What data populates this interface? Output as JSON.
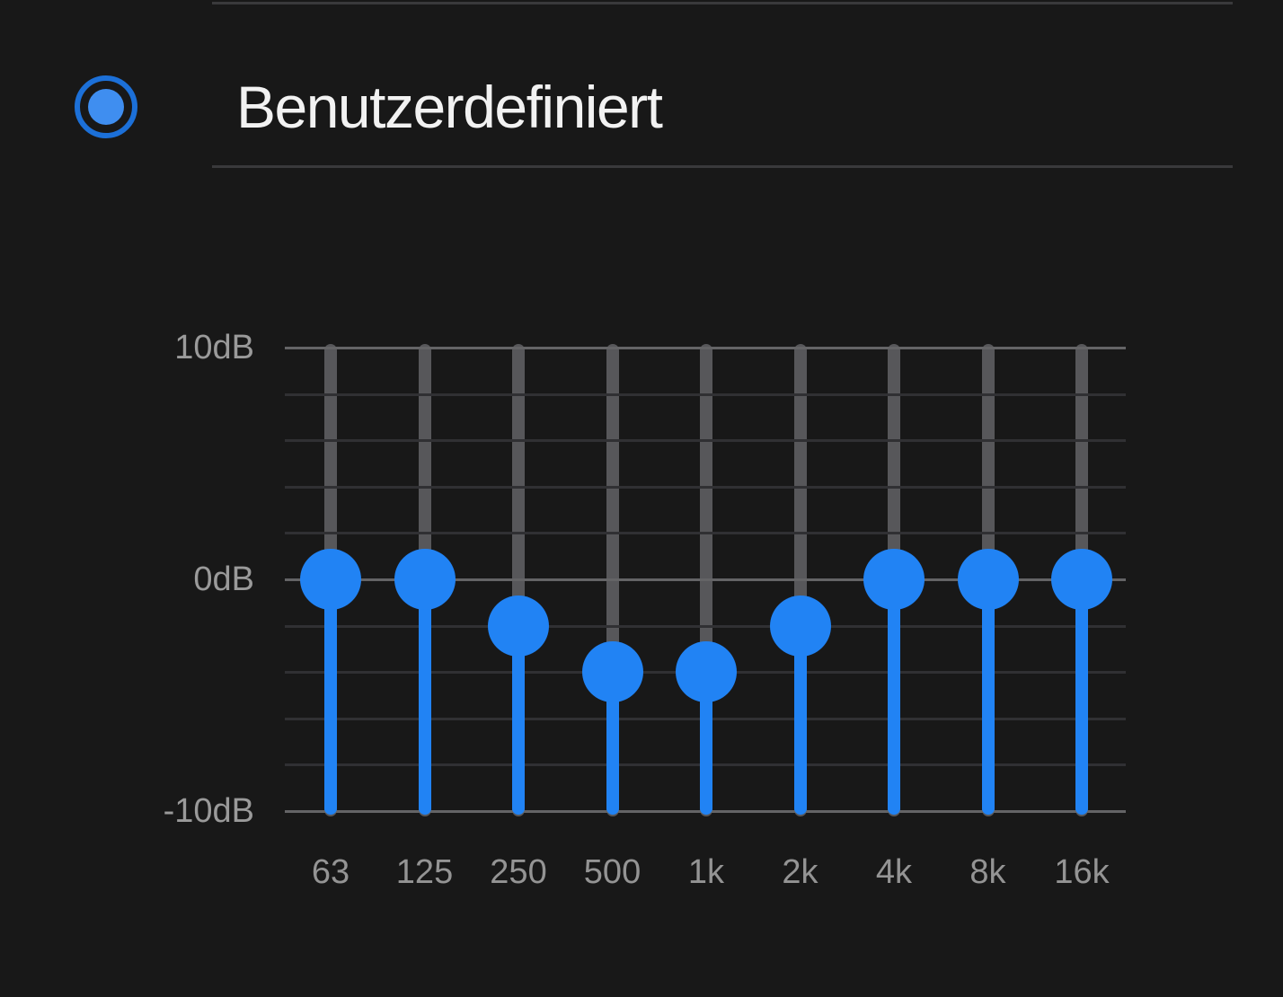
{
  "colors": {
    "background": "#181818",
    "accent_blue": "#2183f4",
    "radio_ring_blue": "#1c70d8",
    "radio_dot_blue": "#3f8ef0",
    "track_gray": "#57575a",
    "gridline_dim": "#303033",
    "gridline_bright": "#646466",
    "divider_gray": "#39393b",
    "title_white": "#f2f2f2",
    "axis_label_gray": "#9a9a9a",
    "freq_label_gray": "#949494"
  },
  "preset": {
    "label": "Benutzerdefiniert",
    "selected": true
  },
  "equalizer": {
    "y_axis_labels": [
      {
        "text": "10dB",
        "db": 10
      },
      {
        "text": "0dB",
        "db": 0
      },
      {
        "text": "-10dB",
        "db": -10
      }
    ],
    "y_range_db": [
      -10,
      10
    ],
    "gridline_step_db": 2,
    "bands": [
      {
        "freq": "63",
        "gain_db": 0
      },
      {
        "freq": "125",
        "gain_db": 0
      },
      {
        "freq": "250",
        "gain_db": -2
      },
      {
        "freq": "500",
        "gain_db": -4
      },
      {
        "freq": "1k",
        "gain_db": -4
      },
      {
        "freq": "2k",
        "gain_db": -2
      },
      {
        "freq": "4k",
        "gain_db": 0
      },
      {
        "freq": "8k",
        "gain_db": 0
      },
      {
        "freq": "16k",
        "gain_db": 0
      }
    ]
  }
}
